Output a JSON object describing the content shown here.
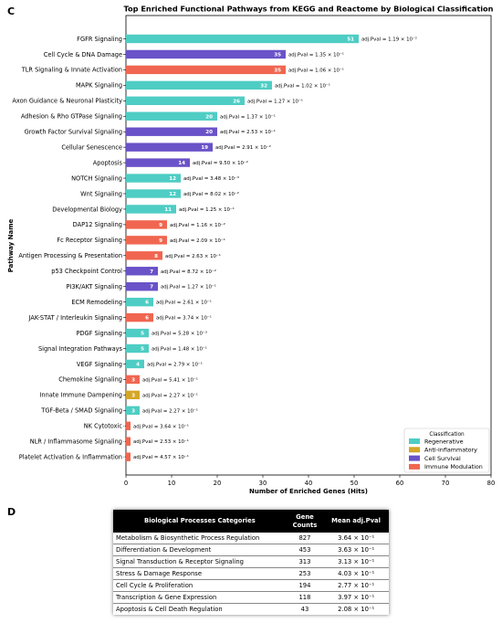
{
  "panel_c_letter": "C",
  "panel_d_letter": "D",
  "chart_data": {
    "type": "bar",
    "orientation": "horizontal",
    "title": "Top Enriched Functional Pathways from KEGG and Reactome by Biological Classification",
    "xlabel": "Number of Enriched Genes (Hits)",
    "ylabel": "Pathway Name",
    "xlim": [
      0,
      80
    ],
    "xticks": [
      0,
      10,
      20,
      30,
      40,
      50,
      60,
      70,
      80
    ],
    "grid": false,
    "legend": {
      "title": "Classification",
      "position": "bottom-right",
      "entries": [
        {
          "name": "Regenerative",
          "color": "#4ecdc4"
        },
        {
          "name": "Anti-inflammatory",
          "color": "#d4a628"
        },
        {
          "name": "Cell Survival",
          "color": "#6a52c8"
        },
        {
          "name": "Immune Modulation",
          "color": "#f06650"
        }
      ]
    },
    "bars": [
      {
        "name": "FGFR Signaling",
        "value": 51,
        "class": "Regenerative",
        "pval": "adj.Pval = 1.19 × 10⁻²"
      },
      {
        "name": "Cell Cycle & DNA Damage",
        "value": 35,
        "class": "Cell Survival",
        "pval": "adj.Pval = 1.35 × 10⁻¹"
      },
      {
        "name": "TLR Signaling & Innate Activation",
        "value": 35,
        "class": "Immune Modulation",
        "pval": "adj.Pval = 1.06 × 10⁻¹"
      },
      {
        "name": "MAPK Signaling",
        "value": 32,
        "class": "Regenerative",
        "pval": "adj.Pval = 1.02 × 10⁻¹"
      },
      {
        "name": "Axon Guidance & Neuronal Plasticity",
        "value": 26,
        "class": "Regenerative",
        "pval": "adj.Pval = 1.27 × 10⁻¹"
      },
      {
        "name": "Adhesion & Rho GTPase Signaling",
        "value": 20,
        "class": "Regenerative",
        "pval": "adj.Pval = 1.37 × 10⁻¹"
      },
      {
        "name": "Growth Factor Survival Signaling",
        "value": 20,
        "class": "Cell Survival",
        "pval": "adj.Pval = 2.53 × 10⁻¹"
      },
      {
        "name": "Cellular Senescence",
        "value": 19,
        "class": "Cell Survival",
        "pval": "adj.Pval = 2.91 × 10⁻²"
      },
      {
        "name": "Apoptosis",
        "value": 14,
        "class": "Cell Survival",
        "pval": "adj.Pval = 9.50 × 10⁻²"
      },
      {
        "name": "NOTCH Signaling",
        "value": 12,
        "class": "Regenerative",
        "pval": "adj.Pval = 3.48 × 10⁻³"
      },
      {
        "name": "Wnt Signaling",
        "value": 12,
        "class": "Regenerative",
        "pval": "adj.Pval = 8.02 × 10⁻²"
      },
      {
        "name": "Developmental Biology",
        "value": 11,
        "class": "Regenerative",
        "pval": "adj.Pval = 1.25 × 10⁻¹"
      },
      {
        "name": "DAP12 Signaling",
        "value": 9,
        "class": "Immune Modulation",
        "pval": "adj.Pval = 1.16 × 10⁻²"
      },
      {
        "name": "Fc Receptor Signaling",
        "value": 9,
        "class": "Immune Modulation",
        "pval": "adj.Pval = 2.09 × 10⁻¹"
      },
      {
        "name": "Antigen Processing & Presentation",
        "value": 8,
        "class": "Immune Modulation",
        "pval": "adj.Pval = 2.63 × 10⁻¹"
      },
      {
        "name": "p53 Checkpoint Control",
        "value": 7,
        "class": "Cell Survival",
        "pval": "adj.Pval = 8.72 × 10⁻²"
      },
      {
        "name": "PI3K/AKT Signaling",
        "value": 7,
        "class": "Cell Survival",
        "pval": "adj.Pval = 1.27 × 10⁻¹"
      },
      {
        "name": "ECM Remodeling",
        "value": 6,
        "class": "Regenerative",
        "pval": "adj.Pval = 2.61 × 10⁻¹"
      },
      {
        "name": "JAK-STAT / Interleukin Signaling",
        "value": 6,
        "class": "Immune Modulation",
        "pval": "adj.Pval = 3.74 × 10⁻¹"
      },
      {
        "name": "PDGF Signaling",
        "value": 5,
        "class": "Regenerative",
        "pval": "adj.Pval = 5.28 × 10⁻³"
      },
      {
        "name": "Signal Integration Pathways",
        "value": 5,
        "class": "Regenerative",
        "pval": "adj.Pval = 1.48 × 10⁻¹"
      },
      {
        "name": "VEGF Signaling",
        "value": 4,
        "class": "Regenerative",
        "pval": "adj.Pval = 2.79 × 10⁻¹"
      },
      {
        "name": "Chemokine Signaling",
        "value": 3,
        "class": "Immune Modulation",
        "pval": "adj.Pval = 5.41 × 10⁻¹"
      },
      {
        "name": "Innate Immune Dampening",
        "value": 3,
        "class": "Anti-inflammatory",
        "pval": "adj.Pval = 2.27 × 10⁻¹"
      },
      {
        "name": "TGF-Beta / SMAD Signaling",
        "value": 3,
        "class": "Regenerative",
        "pval": "adj.Pval = 2.27 × 10⁻¹"
      },
      {
        "name": "NK Cytotoxic",
        "value": 1,
        "class": "Immune Modulation",
        "pval": "adj.Pval = 3.64 × 10⁻¹"
      },
      {
        "name": "NLR / Inflammasome Signaling",
        "value": 1,
        "class": "Immune Modulation",
        "pval": "adj.Pval = 2.53 × 10⁻¹"
      },
      {
        "name": "Platelet Activation & Inflammation",
        "value": 1,
        "class": "Immune Modulation",
        "pval": "adj.Pval = 4.57 × 10⁻¹"
      }
    ]
  },
  "table": {
    "headers": {
      "category": "Biological Processes Categories",
      "gene_counts_line1": "Gene",
      "gene_counts_line2": "Counts",
      "mean_pval": "Mean adj.Pval"
    },
    "rows": [
      {
        "category": "Metabolism & Biosynthetic Process Regulation",
        "count": "827",
        "pval": "3.64 × 10⁻¹"
      },
      {
        "category": "Differentiation & Development",
        "count": "453",
        "pval": "3.63 × 10⁻¹"
      },
      {
        "category": "Signal Transduction & Receptor Signaling",
        "count": "313",
        "pval": "3.13 × 10⁻¹"
      },
      {
        "category": "Stress & Damage Response",
        "count": "253",
        "pval": "4.03 × 10⁻¹"
      },
      {
        "category": "Cell Cycle & Proliferation",
        "count": "194",
        "pval": "2.77 × 10⁻¹"
      },
      {
        "category": "Transcription & Gene Expression",
        "count": "118",
        "pval": "3.97 × 10⁻¹"
      },
      {
        "category": "Apoptosis & Cell Death Regulation",
        "count": "43",
        "pval": "2.08 × 10⁻¹"
      }
    ]
  }
}
